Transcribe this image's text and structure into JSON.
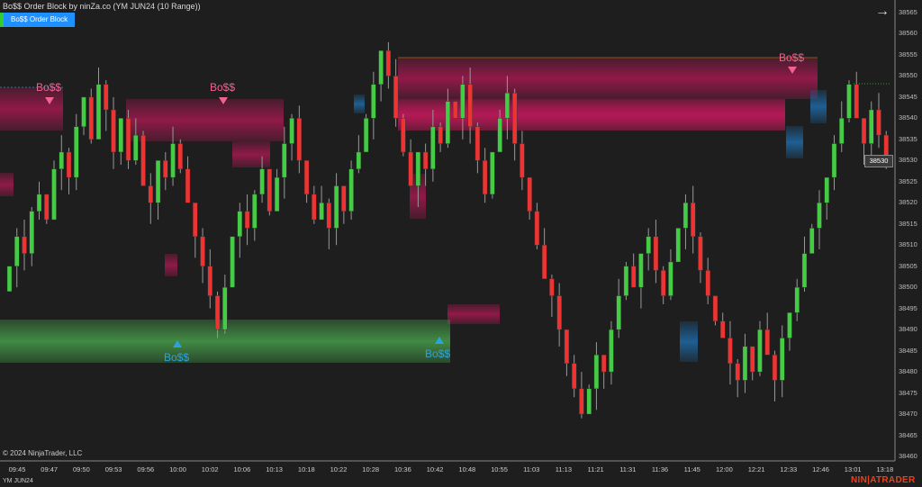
{
  "window": {
    "title": "Bo$$ Order Block by ninZa.co (YM JUN24 (10 Range))",
    "indicator_button": "Bo$$ Order Block",
    "nav_arrow_icon": "arrow-right-icon"
  },
  "footer": {
    "copyright": "© 2024 NinjaTrader, LLC",
    "instrument": "YM JUN24",
    "logo": "NIN|ATRADER"
  },
  "price_axis": {
    "ticks": [
      "38565",
      "38560",
      "38555",
      "38550",
      "38545",
      "38540",
      "38535",
      "38530",
      "38525",
      "38520",
      "38515",
      "38510",
      "38505",
      "38500",
      "38495",
      "38490",
      "38485",
      "38480",
      "38475",
      "38470",
      "38465",
      "38460"
    ],
    "current_price": "38530"
  },
  "time_axis": {
    "ticks": [
      "09:45",
      "09:47",
      "09:50",
      "09:53",
      "09:56",
      "10:00",
      "10:02",
      "10:06",
      "10:13",
      "10:18",
      "10:22",
      "10:28",
      "10:36",
      "10:42",
      "10:48",
      "10:55",
      "11:03",
      "11:13",
      "11:21",
      "11:31",
      "11:36",
      "11:45",
      "12:00",
      "12:21",
      "12:33",
      "12:46",
      "13:01",
      "13:18"
    ]
  },
  "signals": [
    {
      "text": "Bo$$",
      "type": "bearish"
    },
    {
      "text": "Bo$$",
      "type": "bearish"
    },
    {
      "text": "Bo$$",
      "type": "bearish"
    },
    {
      "text": "Bo$$",
      "type": "bullish"
    },
    {
      "text": "Bo$$",
      "type": "bullish"
    }
  ],
  "colors": {
    "up": "#44cc44",
    "down": "#ee3333",
    "bear_zone": "#c2185b",
    "bull_zone": "#4caf50",
    "bear_label": "#f06292",
    "bull_label": "#29a3e0",
    "background": "#1e1e1e"
  },
  "chart_data": {
    "type": "candlestick",
    "y_range": [
      38460,
      38565
    ],
    "closes": [
      38505,
      38512,
      38508,
      38518,
      38522,
      38516,
      38528,
      38532,
      38526,
      38538,
      38545,
      38535,
      38548,
      38542,
      38532,
      38540,
      38530,
      38536,
      38524,
      38520,
      38530,
      38526,
      38534,
      38528,
      38520,
      38512,
      38505,
      38498,
      38490,
      38500,
      38512,
      38518,
      38514,
      38522,
      38528,
      38518,
      38526,
      38534,
      38540,
      38530,
      38522,
      38516,
      38520,
      38514,
      38524,
      38518,
      38528,
      38532,
      38540,
      38548,
      38556,
      38550,
      38540,
      38532,
      38524,
      38532,
      38528,
      38538,
      38534,
      38544,
      38540,
      38548,
      38538,
      38530,
      38522,
      38532,
      38540,
      38546,
      38534,
      38526,
      38518,
      38510,
      38502,
      38498,
      38490,
      38482,
      38476,
      38470,
      38476,
      38484,
      38480,
      38490,
      38498,
      38505,
      38500,
      38508,
      38512,
      38504,
      38498,
      38506,
      38514,
      38520,
      38512,
      38504,
      38498,
      38492,
      38488,
      38482,
      38478,
      38486,
      38480,
      38490,
      38484,
      38478,
      38488,
      38494,
      38500,
      38508,
      38514,
      38520,
      38526,
      38534,
      38540,
      38548,
      38540,
      38534,
      38542,
      38536,
      38530
    ]
  }
}
